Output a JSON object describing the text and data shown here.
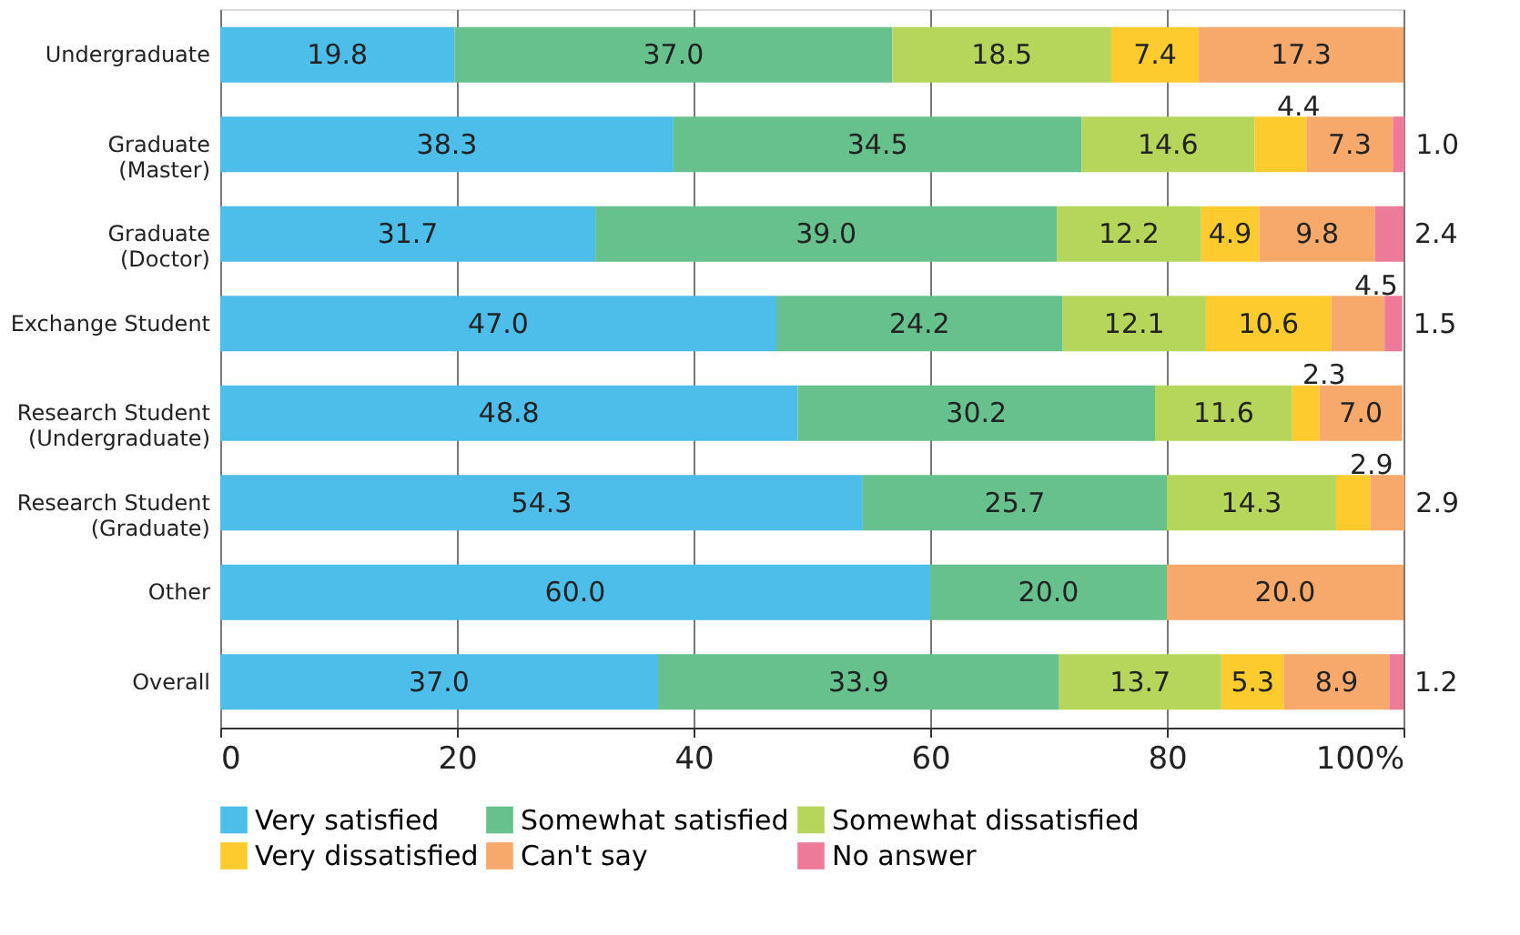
{
  "chart_data": {
    "type": "bar",
    "orientation": "horizontal",
    "stacked": true,
    "grid": "x",
    "legend": "bottom",
    "categories": [
      "Undergraduate",
      "Graduate\n(Master)",
      "Graduate\n(Doctor)",
      "Exchange Student",
      "Research Student\n(Undergraduate)",
      "Research Student\n(Graduate)",
      "Other",
      "Overall"
    ],
    "xlim": [
      0,
      100
    ],
    "xticks": [
      0,
      20,
      40,
      60,
      80,
      {
        "value": 100,
        "label": "100%"
      }
    ],
    "series": [
      {
        "name": "Very satisfied",
        "color": "#4dbde9",
        "values": [
          19.8,
          38.3,
          31.7,
          47.0,
          48.8,
          54.3,
          60.0,
          37.0
        ],
        "value_labels": [
          "19.8",
          "38.3",
          "31.7",
          "47.0",
          "48.8",
          "54.3",
          "60.0",
          "37.0"
        ]
      },
      {
        "name": "Somewhat satisfied",
        "color": "#66c18c",
        "values": [
          37.0,
          34.5,
          39.0,
          24.2,
          30.2,
          25.7,
          20.0,
          33.9
        ],
        "value_labels": [
          "37.0",
          "34.5",
          "39.0",
          "24.2",
          "30.2",
          "25.7",
          "20.0",
          "33.9"
        ]
      },
      {
        "name": "Somewhat dissatisfied",
        "color": "#b5d65a",
        "values": [
          18.5,
          14.6,
          12.2,
          12.1,
          11.6,
          14.3,
          null,
          13.7
        ],
        "value_labels": [
          "18.5",
          "14.6",
          "12.2",
          "12.1",
          "11.6",
          "14.3",
          null,
          "13.7"
        ]
      },
      {
        "name": "Very dissatisfied",
        "color": "#fdcb2e",
        "values": [
          7.4,
          4.4,
          4.9,
          10.6,
          2.3,
          2.9,
          null,
          5.3
        ],
        "value_labels": [
          "7.4",
          "4.4",
          "4.9",
          "10.6",
          "2.3",
          "2.9",
          null,
          "5.3"
        ]
      },
      {
        "name": "Can't say",
        "color": "#f7a96b",
        "values": [
          17.3,
          7.3,
          9.8,
          4.5,
          7.0,
          2.9,
          20.0,
          8.9
        ],
        "value_labels": [
          "17.3",
          "7.3",
          "9.8",
          "4.5",
          "7.0",
          "2.9",
          "20.0",
          "8.9"
        ]
      },
      {
        "name": "No answer",
        "color": "#ee7a99",
        "values": [
          null,
          1.0,
          2.4,
          1.5,
          null,
          null,
          null,
          1.2
        ],
        "value_labels": [
          null,
          "1.0",
          "2.4",
          "1.5",
          null,
          null,
          null,
          "1.2"
        ]
      }
    ]
  }
}
